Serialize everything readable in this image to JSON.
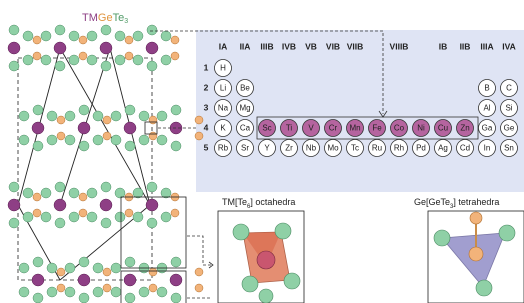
{
  "title": {
    "parts": [
      "TM",
      "Ge",
      "Te",
      "3"
    ]
  },
  "table": {
    "groups": [
      "IA",
      "IIA",
      "IIIB",
      "IVB",
      "VB",
      "VIB",
      "VIIB",
      "VIIIB",
      "IB",
      "IIB",
      "IIIA",
      "IVA"
    ],
    "periods": [
      "1",
      "2",
      "3",
      "4",
      "5"
    ],
    "rows": [
      [
        "H"
      ],
      [
        "Li",
        "Be",
        "B",
        "C"
      ],
      [
        "Na",
        "Mg",
        "Al",
        "Si"
      ],
      [
        "K",
        "Ca",
        "Sc",
        "Ti",
        "V",
        "Cr",
        "Mn",
        "Fe",
        "Co",
        "Ni",
        "Cu",
        "Zn",
        "Ga",
        "Ge"
      ],
      [
        "Rb",
        "Sr",
        "Y",
        "Zr",
        "Nb",
        "Mo",
        "Tc",
        "Ru",
        "Rh",
        "Pd",
        "Ag",
        "Cd",
        "In",
        "Sn"
      ]
    ]
  },
  "panels": [
    {
      "parts": [
        "TM[Te",
        "6",
        "] octahedra"
      ]
    },
    {
      "parts": [
        "Ge[GeTe",
        "3",
        "] tetrahedra"
      ]
    }
  ]
}
